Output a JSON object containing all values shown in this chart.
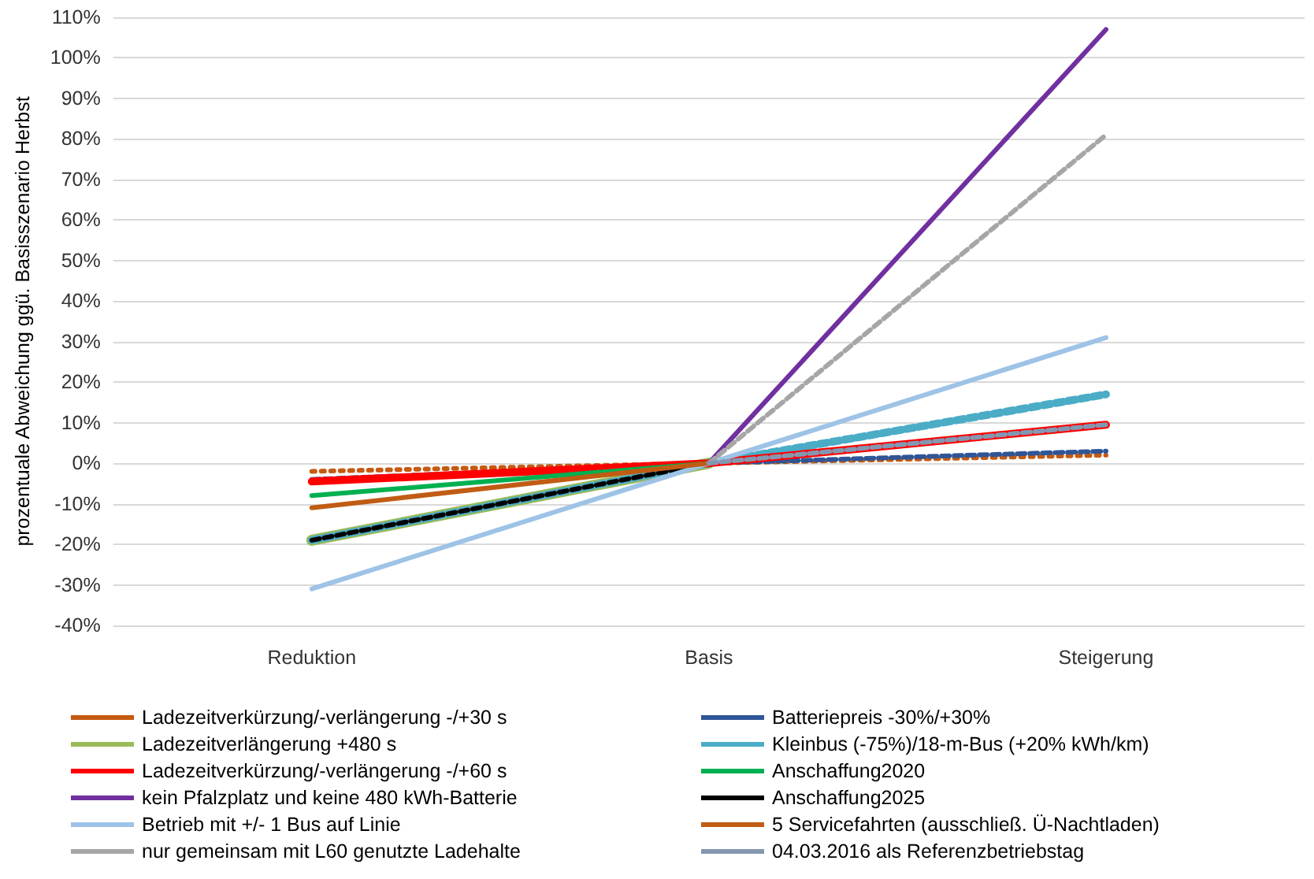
{
  "chart_data": {
    "type": "line",
    "ylabel": "prozentuale Abweichung ggü. Basisszenario Herbst",
    "categories": [
      "Reduktion",
      "Basis",
      "Steigerung"
    ],
    "ylim": [
      -40,
      110
    ],
    "yticks": [
      {
        "value": -40,
        "label": "-40%"
      },
      {
        "value": -30,
        "label": "-30%"
      },
      {
        "value": -20,
        "label": "-20%"
      },
      {
        "value": -10,
        "label": "-10%"
      },
      {
        "value": 0,
        "label": "0%"
      },
      {
        "value": 10,
        "label": "10%"
      },
      {
        "value": 20,
        "label": "20%"
      },
      {
        "value": 30,
        "label": "30%"
      },
      {
        "value": 40,
        "label": "40%"
      },
      {
        "value": 50,
        "label": "50%"
      },
      {
        "value": 60,
        "label": "60%"
      },
      {
        "value": 70,
        "label": "70%"
      },
      {
        "value": 80,
        "label": "80%"
      },
      {
        "value": 90,
        "label": "90%"
      },
      {
        "value": 100,
        "label": "100%"
      },
      {
        "value": 110,
        "label": "110%"
      }
    ],
    "grid": "y",
    "legend": "bottom",
    "marker": "none",
    "series": [
      {
        "name": "Ladezeitverkürzung/-verlängerung -/+30 s",
        "color": "#c55a11",
        "line_style": "dotted",
        "values": [
          -2,
          0,
          2
        ]
      },
      {
        "name": "Batteriepreis -30%/+30%",
        "color": "#2f5597",
        "line_style": "dashed",
        "values": [
          -4,
          0,
          3
        ]
      },
      {
        "name": "Ladezeitverlängerung +480 s",
        "color": "#9bbb59",
        "values": [
          -19,
          0,
          null
        ]
      },
      {
        "name": "Kleinbus (-75%)/18-m-Bus (+20% kWh/km)",
        "color": "#4bacc6",
        "line_style": "dashed",
        "values": [
          -19,
          0,
          17
        ]
      },
      {
        "name": "Ladezeitverkürzung/-verlängerung -/+60 s",
        "color": "#ff0000",
        "values": [
          -4.5,
          0,
          9.5
        ]
      },
      {
        "name": "Anschaffung2020",
        "color": "#00b050",
        "values": [
          -8,
          0,
          null
        ]
      },
      {
        "name": "kein Pfalzplatz und keine 480 kWh-Batterie",
        "color": "#7030a0",
        "values": [
          null,
          0,
          107
        ]
      },
      {
        "name": "Anschaffung2025",
        "color": "#000000",
        "line_style": "dashed",
        "values": [
          -19,
          0,
          null
        ]
      },
      {
        "name": "Betrieb mit +/- 1 Bus auf Linie",
        "color": "#9dc3e6",
        "values": [
          -31,
          0,
          31
        ]
      },
      {
        "name": "5 Servicefahrten (ausschließ. Ü-Nachtladen)",
        "color": "#c05c13",
        "values": [
          -11,
          0,
          null
        ]
      },
      {
        "name": "nur gemeinsam mit L60 genutzte Ladehalte",
        "color": "#a6a6a6",
        "line_style": "dashed",
        "values": [
          null,
          0,
          81
        ]
      },
      {
        "name": "04.03.2016 als Referenzbetriebstag",
        "color": "#8497b0",
        "line_style": "dashed",
        "values": [
          null,
          0,
          9.5
        ]
      }
    ]
  }
}
